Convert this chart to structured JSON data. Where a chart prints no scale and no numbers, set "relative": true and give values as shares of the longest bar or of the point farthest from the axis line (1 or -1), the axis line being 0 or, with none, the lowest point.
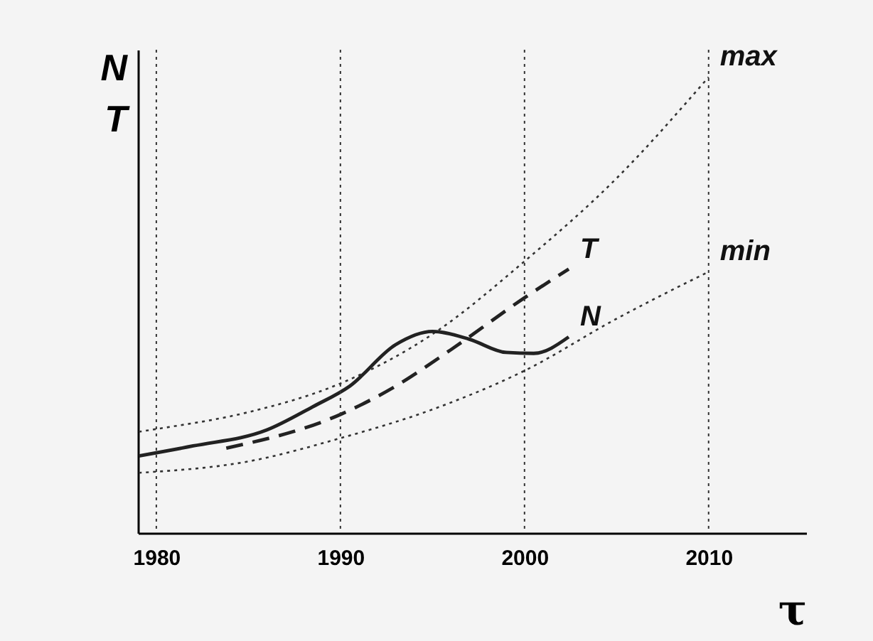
{
  "chart_data": {
    "type": "line",
    "relative": true,
    "xlabel": "τ",
    "ylabel": "N\nT",
    "xlim": [
      1979,
      2015.3
    ],
    "xticks": [
      1980,
      1990,
      2000,
      2010
    ],
    "grid": false,
    "series": [
      {
        "name": "max",
        "color": "#333333",
        "line_style": "dotted",
        "x": [
          1979.05,
          1980,
          1985,
          1990,
          1995,
          2000,
          2005,
          2010
        ],
        "values": [
          0.222,
          0.228,
          0.265,
          0.328,
          0.436,
          0.596,
          0.778,
          1.0
        ]
      },
      {
        "name": "min",
        "color": "#333333",
        "line_style": "dotted",
        "x": [
          1979.05,
          1985,
          1990,
          1995,
          2000,
          2005,
          2010
        ],
        "values": [
          0.132,
          0.157,
          0.208,
          0.271,
          0.356,
          0.47,
          0.573
        ]
      },
      {
        "name": "T",
        "color": "#222222",
        "line_style": "dashed",
        "x": [
          1983.8,
          1990,
          1993,
          1996,
          2000,
          2002.4
        ],
        "values": [
          0.186,
          0.26,
          0.322,
          0.402,
          0.516,
          0.579
        ]
      },
      {
        "name": "N",
        "color": "#222222",
        "line_style": "solid",
        "x": [
          1979.05,
          1982,
          1986,
          1988.5,
          1990.5,
          1993,
          1995,
          1997,
          1999,
          2000.5,
          2002.4
        ],
        "values": [
          0.169,
          0.191,
          0.226,
          0.277,
          0.322,
          0.413,
          0.442,
          0.425,
          0.396,
          0.394,
          0.43
        ]
      }
    ],
    "ref_lines": [
      {
        "axis": "x",
        "value": 1980,
        "line_style": "dotted"
      },
      {
        "axis": "x",
        "value": 1990,
        "line_style": "dotted"
      },
      {
        "axis": "x",
        "value": 2000,
        "line_style": "dotted"
      },
      {
        "axis": "x",
        "value": 2010,
        "line_style": "dotted"
      }
    ]
  }
}
